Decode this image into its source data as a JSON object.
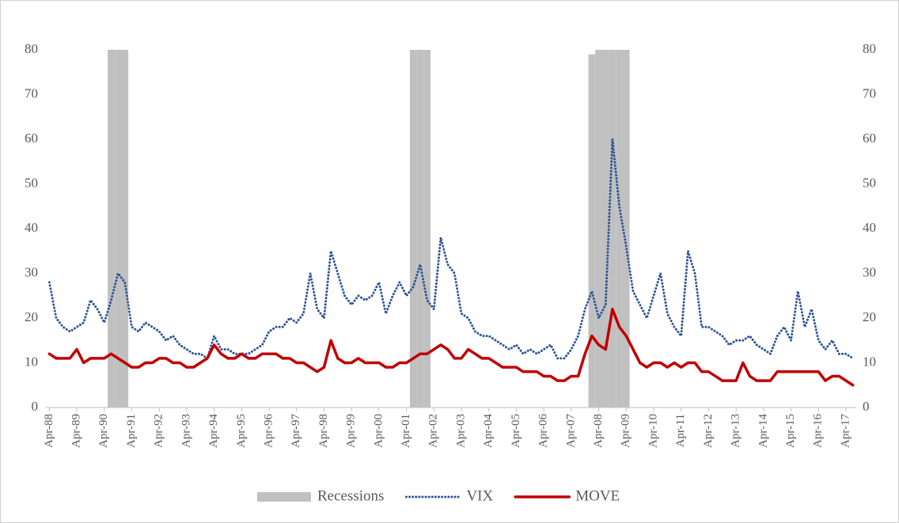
{
  "chart_data": {
    "type": "line",
    "categories": [
      "Apr-88",
      null,
      null,
      null,
      "Apr-89",
      null,
      null,
      null,
      "Apr-90",
      null,
      null,
      null,
      "Apr-91",
      null,
      null,
      null,
      "Apr-92",
      null,
      null,
      null,
      "Apr-93",
      null,
      null,
      null,
      "Apr-94",
      null,
      null,
      null,
      "Apr-95",
      null,
      null,
      null,
      "Apr-96",
      null,
      null,
      null,
      "Apr-97",
      null,
      null,
      null,
      "Apr-98",
      null,
      null,
      null,
      "Apr-99",
      null,
      null,
      null,
      "Apr-00",
      null,
      null,
      null,
      "Apr-01",
      null,
      null,
      null,
      "Apr-02",
      null,
      null,
      null,
      "Apr-03",
      null,
      null,
      null,
      "Apr-04",
      null,
      null,
      null,
      "Apr-05",
      null,
      null,
      null,
      "Apr-06",
      null,
      null,
      null,
      "Apr-07",
      null,
      null,
      null,
      "Apr-08",
      null,
      null,
      null,
      "Apr-09",
      null,
      null,
      null,
      "Apr-10",
      null,
      null,
      null,
      "Apr-11",
      null,
      null,
      null,
      "Apr-12",
      null,
      null,
      null,
      "Apr-13",
      null,
      null,
      null,
      "Apr-14",
      null,
      null,
      null,
      "Apr-15",
      null,
      null,
      null,
      "Apr-16",
      null,
      null,
      null,
      "Apr-17",
      null
    ],
    "series": [
      {
        "name": "Recessions",
        "color": "#c0c0c0",
        "kind": "bar",
        "values": [
          0,
          0,
          0,
          0,
          0,
          0,
          0,
          0,
          0,
          80,
          80,
          80,
          0,
          0,
          0,
          0,
          0,
          0,
          0,
          0,
          0,
          0,
          0,
          0,
          0,
          0,
          0,
          0,
          0,
          0,
          0,
          0,
          0,
          0,
          0,
          0,
          0,
          0,
          0,
          0,
          0,
          0,
          0,
          0,
          0,
          0,
          0,
          0,
          0,
          0,
          0,
          0,
          0,
          80,
          80,
          80,
          0,
          0,
          0,
          0,
          0,
          0,
          0,
          0,
          0,
          0,
          0,
          0,
          0,
          0,
          0,
          0,
          0,
          0,
          0,
          0,
          0,
          0,
          0,
          79,
          80,
          80,
          80,
          80,
          80,
          0,
          0,
          0,
          0,
          0,
          0,
          0,
          0,
          0,
          0,
          0,
          0,
          0,
          0,
          0,
          0,
          0,
          0,
          0,
          0,
          0,
          0,
          0,
          0,
          0,
          0,
          0,
          0,
          0,
          0,
          0,
          0,
          0
        ]
      },
      {
        "name": "VIX",
        "color": "#2e5597",
        "kind": "dotted",
        "values": [
          28,
          20,
          18,
          17,
          18,
          19,
          24,
          22,
          19,
          24,
          30,
          28,
          18,
          17,
          19,
          18,
          17,
          15,
          16,
          14,
          13,
          12,
          12,
          11,
          16,
          13,
          13,
          12,
          12,
          12,
          13,
          14,
          17,
          18,
          18,
          20,
          19,
          21,
          30,
          22,
          20,
          35,
          30,
          25,
          23,
          25,
          24,
          25,
          28,
          21,
          25,
          28,
          25,
          27,
          32,
          24,
          22,
          38,
          32,
          30,
          21,
          20,
          17,
          16,
          16,
          15,
          14,
          13,
          14,
          12,
          13,
          12,
          13,
          14,
          11,
          11,
          13,
          16,
          22,
          26,
          20,
          23,
          60,
          45,
          36,
          26,
          23,
          20,
          25,
          30,
          21,
          18,
          16,
          35,
          30,
          18,
          18,
          17,
          16,
          14,
          15,
          15,
          16,
          14,
          13,
          12,
          16,
          18,
          15,
          26,
          18,
          22,
          15,
          13,
          15,
          12,
          12,
          11
        ]
      },
      {
        "name": "MOVE",
        "color": "#c00000",
        "kind": "solid",
        "values": [
          12,
          11,
          11,
          11,
          13,
          10,
          11,
          11,
          11,
          12,
          11,
          10,
          9,
          9,
          10,
          10,
          11,
          11,
          10,
          10,
          9,
          9,
          10,
          11,
          14,
          12,
          11,
          11,
          12,
          11,
          11,
          12,
          12,
          12,
          11,
          11,
          10,
          10,
          9,
          8,
          9,
          15,
          11,
          10,
          10,
          11,
          10,
          10,
          10,
          9,
          9,
          10,
          10,
          11,
          12,
          12,
          13,
          14,
          13,
          11,
          11,
          13,
          12,
          11,
          11,
          10,
          9,
          9,
          9,
          8,
          8,
          8,
          7,
          7,
          6,
          6,
          7,
          7,
          12,
          16,
          14,
          13,
          22,
          18,
          16,
          13,
          10,
          9,
          10,
          10,
          9,
          10,
          9,
          10,
          10,
          8,
          8,
          7,
          6,
          6,
          6,
          10,
          7,
          6,
          6,
          6,
          8,
          8,
          8,
          8,
          8,
          8,
          8,
          6,
          7,
          7,
          6,
          5
        ]
      }
    ],
    "ylim": [
      0,
      80
    ],
    "yticks": [
      0,
      10,
      20,
      30,
      40,
      50,
      60,
      70,
      80
    ],
    "y2lim": [
      0,
      80
    ],
    "y2ticks": [
      0,
      10,
      20,
      30,
      40,
      50,
      60,
      70,
      80
    ],
    "legend": "bottom"
  }
}
